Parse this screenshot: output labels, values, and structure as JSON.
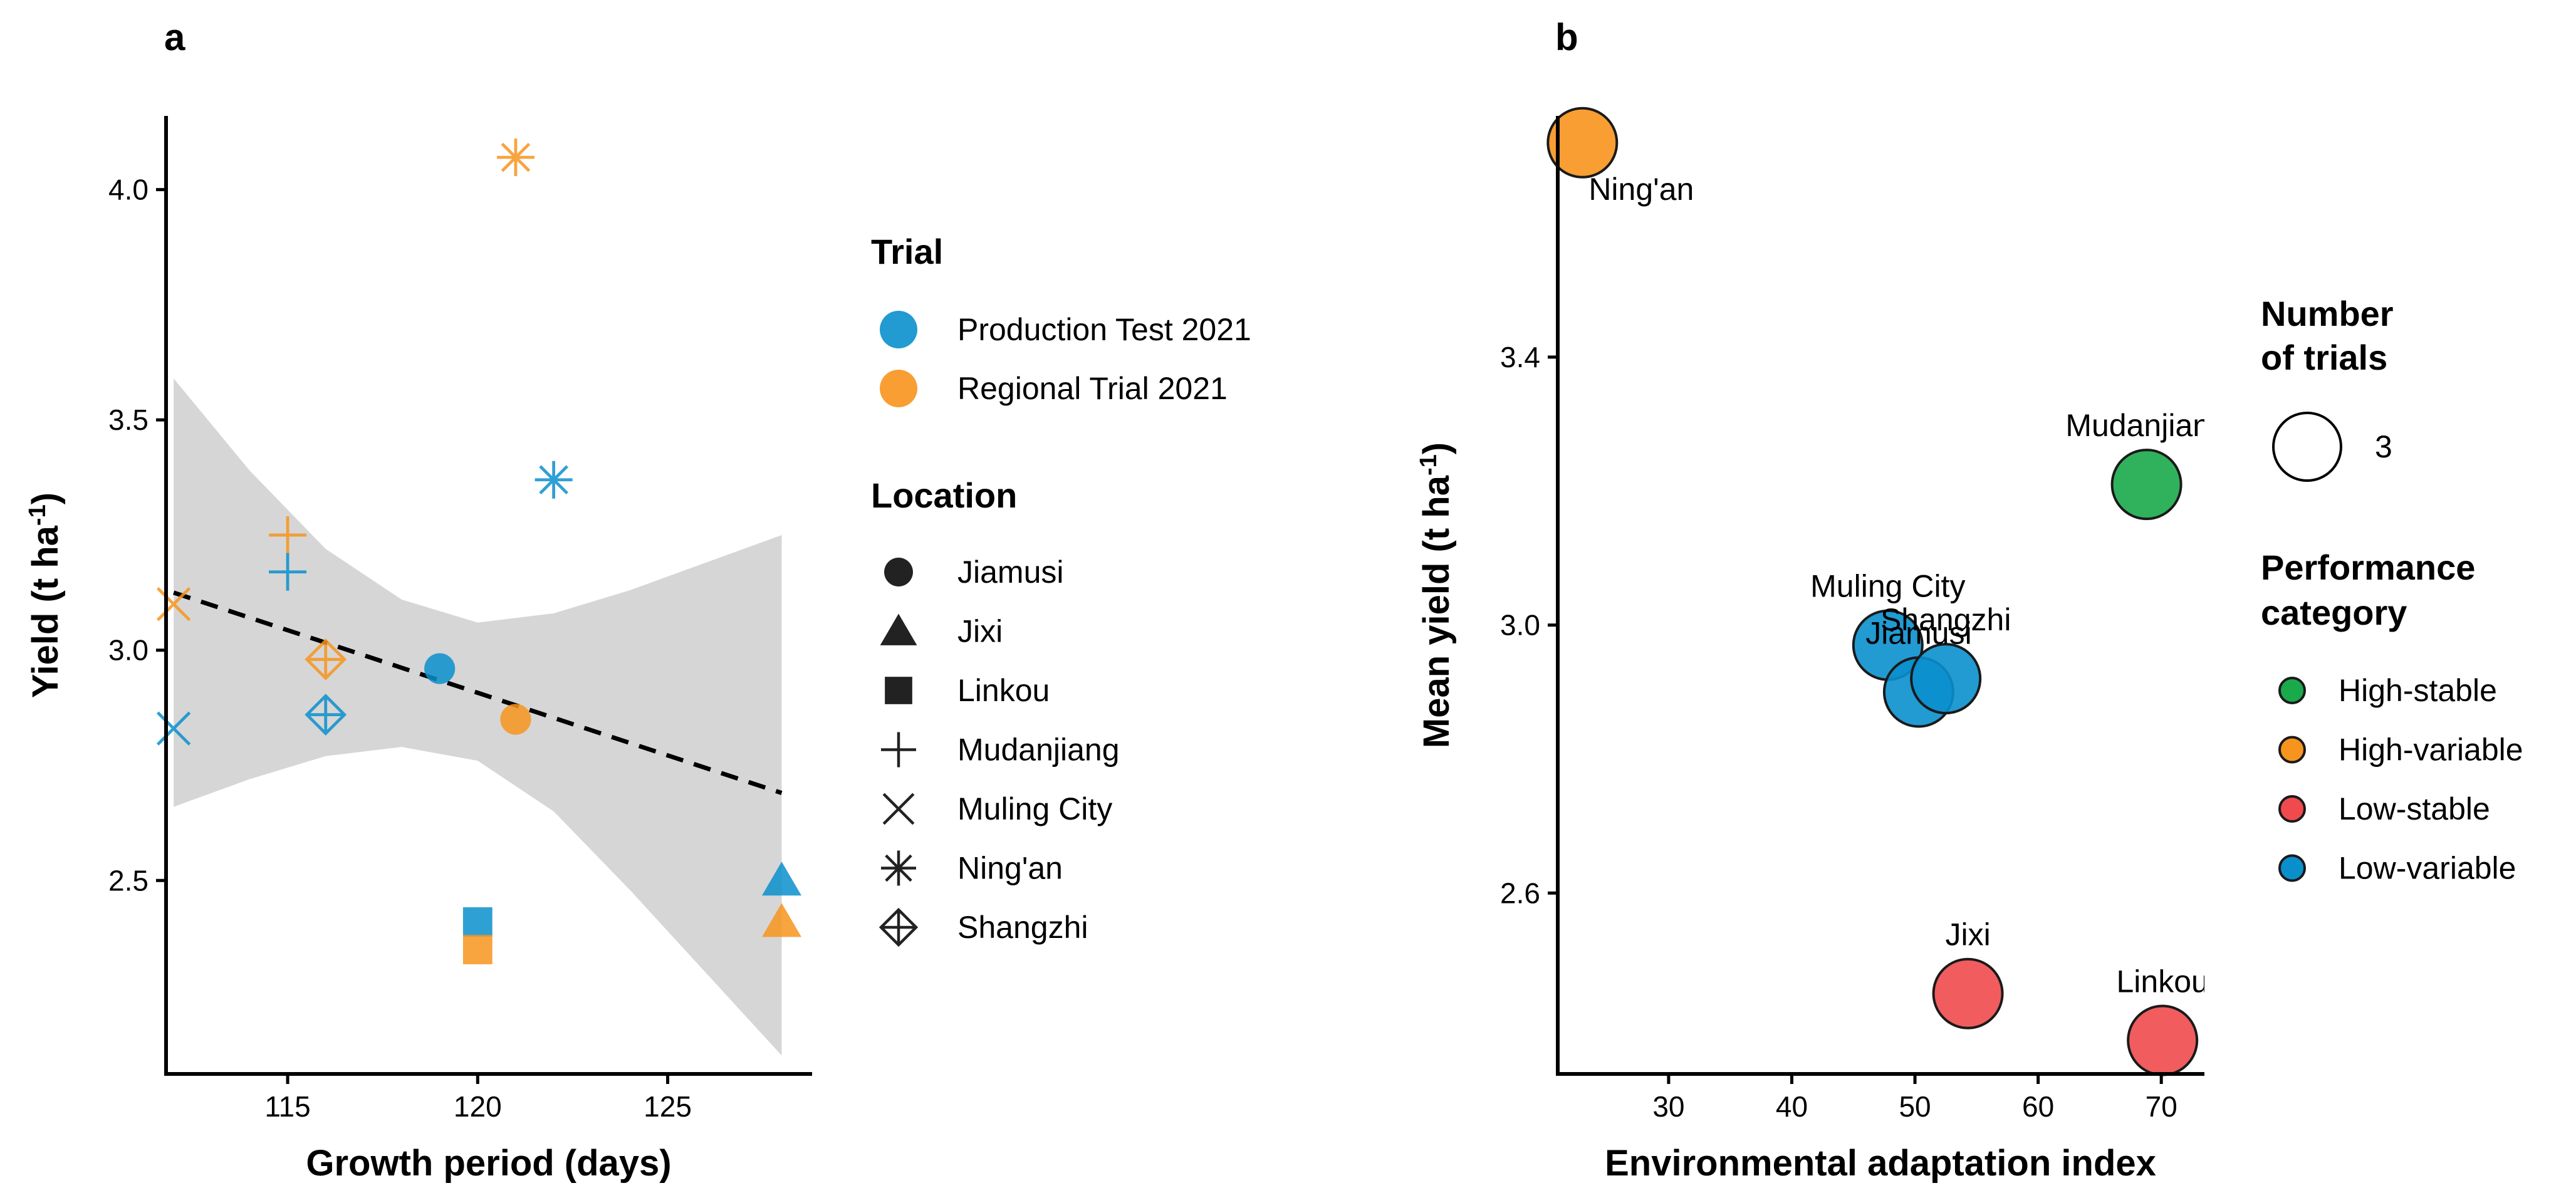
{
  "figure": {
    "panel_a_tag": "a",
    "panel_b_tag": "b"
  },
  "colors": {
    "production": "#0a8fcd",
    "regional": "#f7941d",
    "high_stable": "#1aaa4b",
    "high_variable": "#f7941d",
    "low_stable": "#f04a4e",
    "low_variable": "#0a8fcd",
    "ribbon": "#d6d6d6"
  },
  "chart_data": [
    {
      "type": "scatter",
      "panel": "a",
      "title": "",
      "xlabel": "Growth period (days)",
      "ylabel_main": "Yield (t ha",
      "ylabel_sup": "-1",
      "ylabel_close": ")",
      "xlim": [
        111.8,
        128.8
      ],
      "ylim": [
        2.08,
        4.16
      ],
      "xticks": [
        115,
        120,
        125
      ],
      "xtick_labels": [
        "115",
        "120",
        "125"
      ],
      "yticks": [
        2.5,
        3.0,
        3.5,
        4.0
      ],
      "ytick_labels": [
        "2.5",
        "3.0",
        "3.5",
        "4.0"
      ],
      "trend": {
        "x": [
          112,
          128
        ],
        "y": [
          3.125,
          2.69
        ]
      },
      "ribbon": {
        "x": [
          112,
          114,
          116,
          118,
          120,
          122,
          124,
          126,
          128
        ],
        "upper": [
          3.59,
          3.39,
          3.22,
          3.11,
          3.06,
          3.08,
          3.13,
          3.19,
          3.25
        ],
        "lower": [
          2.66,
          2.72,
          2.77,
          2.79,
          2.76,
          2.65,
          2.48,
          2.3,
          2.12
        ]
      },
      "legend_trial_title": "Trial",
      "legend_trial": [
        {
          "label": "Production Test 2021",
          "color": "#0a8fcd"
        },
        {
          "label": "Regional Trial 2021",
          "color": "#f7941d"
        }
      ],
      "legend_location_title": "Location",
      "legend_location": [
        {
          "label": "Jiamusi",
          "shape": "circle"
        },
        {
          "label": "Jixi",
          "shape": "triangle"
        },
        {
          "label": "Linkou",
          "shape": "square"
        },
        {
          "label": "Mudanjiang",
          "shape": "plus"
        },
        {
          "label": "Muling City",
          "shape": "cross"
        },
        {
          "label": "Ning'an",
          "shape": "asterisk"
        },
        {
          "label": "Shangzhi",
          "shape": "diamondplus"
        }
      ],
      "points": [
        {
          "location": "Ning'an",
          "trial": "Regional Trial 2021",
          "shape": "asterisk",
          "x": 121,
          "y": 4.07
        },
        {
          "location": "Ning'an",
          "trial": "Production Test 2021",
          "shape": "asterisk",
          "x": 122,
          "y": 3.37
        },
        {
          "location": "Mudanjiang",
          "trial": "Regional Trial 2021",
          "shape": "plus",
          "x": 115,
          "y": 3.25
        },
        {
          "location": "Mudanjiang",
          "trial": "Production Test 2021",
          "shape": "plus",
          "x": 115,
          "y": 3.17
        },
        {
          "location": "Muling City",
          "trial": "Regional Trial 2021",
          "shape": "cross",
          "x": 112,
          "y": 3.1
        },
        {
          "location": "Muling City",
          "trial": "Production Test 2021",
          "shape": "cross",
          "x": 112,
          "y": 2.83
        },
        {
          "location": "Shangzhi",
          "trial": "Regional Trial 2021",
          "shape": "diamondplus",
          "x": 116,
          "y": 2.98
        },
        {
          "location": "Shangzhi",
          "trial": "Production Test 2021",
          "shape": "diamondplus",
          "x": 116,
          "y": 2.86
        },
        {
          "location": "Jiamusi",
          "trial": "Production Test 2021",
          "shape": "circle",
          "x": 119,
          "y": 2.96
        },
        {
          "location": "Jiamusi",
          "trial": "Regional Trial 2021",
          "shape": "circle",
          "x": 121,
          "y": 2.85
        },
        {
          "location": "Linkou",
          "trial": "Production Test 2021",
          "shape": "square",
          "x": 120,
          "y": 2.41
        },
        {
          "location": "Linkou",
          "trial": "Regional Trial 2021",
          "shape": "square",
          "x": 120,
          "y": 2.35
        },
        {
          "location": "Jixi",
          "trial": "Production Test 2021",
          "shape": "triangle",
          "x": 128,
          "y": 2.5
        },
        {
          "location": "Jixi",
          "trial": "Regional Trial 2021",
          "shape": "triangle",
          "x": 128,
          "y": 2.41
        }
      ]
    },
    {
      "type": "scatter",
      "panel": "b",
      "title": "",
      "xlabel": "Environmental adaptation index",
      "ylabel_main": "Mean yield (t ha",
      "ylabel_sup": "-1",
      "ylabel_close": ")",
      "xlim": [
        21,
        73.5
      ],
      "ylim": [
        2.33,
        3.76
      ],
      "xticks": [
        30,
        40,
        50,
        60,
        70
      ],
      "xtick_labels": [
        "30",
        "40",
        "50",
        "60",
        "70"
      ],
      "yticks": [
        2.6,
        3.0,
        3.4
      ],
      "ytick_labels": [
        "2.6",
        "3.0",
        "3.4"
      ],
      "legend_size_title_line1": "Number",
      "legend_size_title_line2": "of trials",
      "legend_size_label": "3",
      "legend_category_title_line1": "Performance",
      "legend_category_title_line2": "category",
      "legend_category": [
        {
          "label": "High-stable",
          "color": "#1aaa4b"
        },
        {
          "label": "High-variable",
          "color": "#f7941d"
        },
        {
          "label": "Low-stable",
          "color": "#f04a4e"
        },
        {
          "label": "Low-variable",
          "color": "#0a8fcd"
        }
      ],
      "points": [
        {
          "name": "Ning'an",
          "category": "High-variable",
          "x": 23.0,
          "y": 3.72,
          "trials": 3,
          "label_dx": 0,
          "label_dy": 1
        },
        {
          "name": "Mudanjiang",
          "category": "High-stable",
          "x": 68.8,
          "y": 3.21,
          "trials": 3,
          "label_dx": 0,
          "label_dy": -1
        },
        {
          "name": "Muling City",
          "category": "Low-variable",
          "x": 47.8,
          "y": 2.97,
          "trials": 3,
          "label_dx": 0,
          "label_dy": -1
        },
        {
          "name": "Jiamusi",
          "category": "Low-variable",
          "x": 50.3,
          "y": 2.9,
          "trials": 3,
          "label_dx": 0,
          "label_dy": -1
        },
        {
          "name": "Shangzhi",
          "category": "Low-variable",
          "x": 52.5,
          "y": 2.92,
          "trials": 3,
          "label_dx": 0,
          "label_dy": -1
        },
        {
          "name": "Jixi",
          "category": "Low-stable",
          "x": 54.3,
          "y": 2.45,
          "trials": 3,
          "label_dx": 0,
          "label_dy": -1
        },
        {
          "name": "Linkou",
          "category": "Low-stable",
          "x": 70.1,
          "y": 2.38,
          "trials": 3,
          "label_dx": 0,
          "label_dy": -1
        }
      ]
    }
  ]
}
